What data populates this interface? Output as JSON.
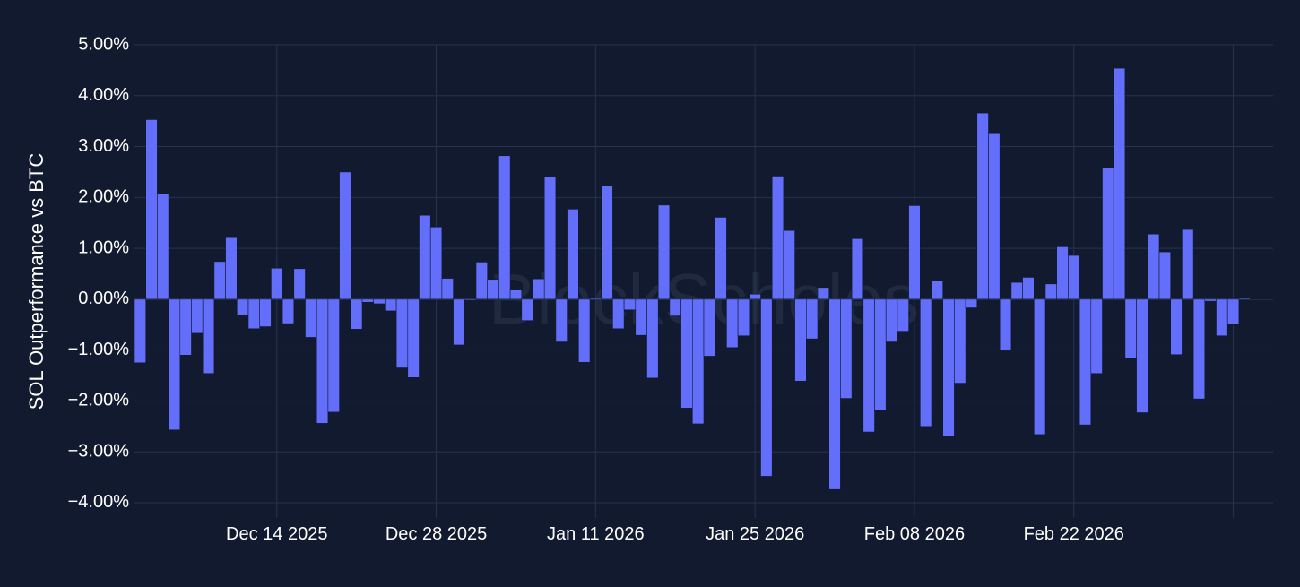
{
  "chart_data": {
    "type": "bar",
    "ylabel": "SOL Outperformance vs BTC",
    "ylim": [
      -4.3,
      5.0
    ],
    "y_ticks": [
      5,
      4,
      3,
      2,
      1,
      0,
      -1,
      -2,
      -3,
      -4
    ],
    "y_tick_labels": [
      "5.00%",
      "4.00%",
      "3.00%",
      "2.00%",
      "1.00%",
      "0.00%",
      "−1.00%",
      "−2.00%",
      "−3.00%",
      "−4.00%"
    ],
    "x_start": "2025-12-02",
    "x_end": "2026-03-11",
    "x_ticks": [
      "2025-12-14",
      "2025-12-28",
      "2026-01-11",
      "2026-01-25",
      "2026-02-08",
      "2026-02-22"
    ],
    "x_tick_labels": [
      "Dec 14 2025",
      "Dec 28 2025",
      "Jan 11 2026",
      "Jan 25 2026",
      "Feb 08 2026",
      "Feb 22 2026"
    ],
    "grid": true,
    "watermark": "BlockScholes",
    "bar_color": "#636efa",
    "x": [
      "2025-12-02",
      "2025-12-03",
      "2025-12-04",
      "2025-12-05",
      "2025-12-06",
      "2025-12-07",
      "2025-12-08",
      "2025-12-09",
      "2025-12-10",
      "2025-12-11",
      "2025-12-12",
      "2025-12-13",
      "2025-12-14",
      "2025-12-15",
      "2025-12-16",
      "2025-12-17",
      "2025-12-18",
      "2025-12-19",
      "2025-12-20",
      "2025-12-21",
      "2025-12-22",
      "2025-12-23",
      "2025-12-24",
      "2025-12-25",
      "2025-12-26",
      "2025-12-27",
      "2025-12-28",
      "2025-12-29",
      "2025-12-30",
      "2025-12-31",
      "2026-01-01",
      "2026-01-02",
      "2026-01-03",
      "2026-01-04",
      "2026-01-05",
      "2026-01-06",
      "2026-01-07",
      "2026-01-08",
      "2026-01-09",
      "2026-01-10",
      "2026-01-11",
      "2026-01-12",
      "2026-01-13",
      "2026-01-14",
      "2026-01-15",
      "2026-01-16",
      "2026-01-17",
      "2026-01-18",
      "2026-01-19",
      "2026-01-20",
      "2026-01-21",
      "2026-01-22",
      "2026-01-23",
      "2026-01-24",
      "2026-01-25",
      "2026-01-26",
      "2026-01-27",
      "2026-01-28",
      "2026-01-29",
      "2026-01-30",
      "2026-01-31",
      "2026-02-01",
      "2026-02-02",
      "2026-02-03",
      "2026-02-04",
      "2026-02-05",
      "2026-02-06",
      "2026-02-07",
      "2026-02-08",
      "2026-02-09",
      "2026-02-10",
      "2026-02-11",
      "2026-02-12",
      "2026-02-13",
      "2026-02-14",
      "2026-02-15",
      "2026-02-16",
      "2026-02-17",
      "2026-02-18",
      "2026-02-19",
      "2026-02-20",
      "2026-02-21",
      "2026-02-22",
      "2026-02-23",
      "2026-02-24",
      "2026-02-25",
      "2026-02-26",
      "2026-02-27",
      "2026-02-28",
      "2026-03-01",
      "2026-03-02",
      "2026-03-03",
      "2026-03-04",
      "2026-03-05",
      "2026-03-06",
      "2026-03-07",
      "2026-03-08",
      "2026-03-09",
      "2026-03-10",
      "2026-03-11"
    ],
    "values": [
      -1.25,
      3.53,
      2.07,
      -2.57,
      -1.1,
      -0.67,
      -1.46,
      0.74,
      1.21,
      -0.31,
      -0.58,
      -0.54,
      0.61,
      -0.48,
      0.6,
      -0.75,
      -2.44,
      -2.22,
      2.5,
      -0.59,
      -0.06,
      -0.09,
      -0.23,
      -1.35,
      -1.54,
      1.65,
      1.42,
      0.41,
      -0.9,
      -0.02,
      0.73,
      0.39,
      2.82,
      0.18,
      -0.42,
      0.4,
      2.4,
      -0.84,
      1.77,
      -1.24,
      0.03,
      2.24,
      -0.58,
      -0.21,
      -0.71,
      -1.55,
      1.85,
      -0.33,
      -2.14,
      -2.45,
      -1.12,
      1.61,
      -0.95,
      -0.72,
      0.1,
      -3.48,
      2.42,
      1.35,
      -1.61,
      -0.78,
      0.23,
      -3.74,
      -1.95,
      1.19,
      -2.61,
      -2.19,
      -0.84,
      -0.63,
      1.84,
      -2.5,
      0.37,
      -2.69,
      -1.65,
      -0.17,
      3.66,
      3.27,
      -1.0,
      0.33,
      0.43,
      -2.66,
      0.3,
      1.03,
      0.86,
      -2.47,
      -1.46,
      2.59,
      4.54,
      -1.16,
      -2.23,
      1.28,
      0.93,
      -1.09,
      1.37,
      -1.96,
      -0.04,
      -0.72,
      -0.5,
      0.02,
      0.01,
      0.01
    ]
  }
}
